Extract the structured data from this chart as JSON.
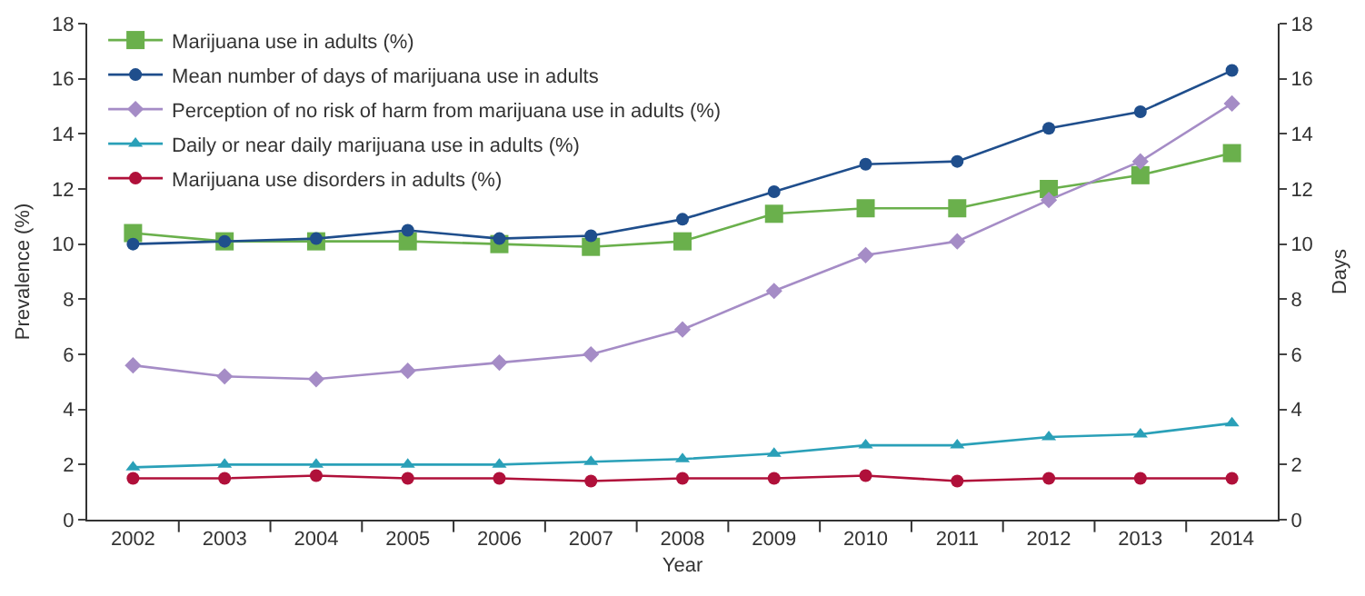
{
  "chart_data": {
    "type": "line",
    "xlabel": "Year",
    "ylabel": "Prevalence (%)",
    "y2label": "Days",
    "categories": [
      "2002",
      "2003",
      "2004",
      "2005",
      "2006",
      "2007",
      "2008",
      "2009",
      "2010",
      "2011",
      "2012",
      "2013",
      "2014"
    ],
    "series": [
      {
        "name": "Marijuana use in adults (%)",
        "color": "#6ab04c",
        "marker": "square",
        "values": [
          10.4,
          10.1,
          10.1,
          10.1,
          10.0,
          9.9,
          10.1,
          11.1,
          11.3,
          11.3,
          12.0,
          12.5,
          13.3
        ]
      },
      {
        "name": "Mean number of days of marijuana use in adults",
        "color": "#1f4e8c",
        "marker": "circle",
        "axis": "y2",
        "values": [
          10.0,
          10.1,
          10.2,
          10.5,
          10.2,
          10.3,
          10.9,
          11.9,
          12.9,
          13.0,
          14.2,
          14.8,
          16.3
        ]
      },
      {
        "name": "Perception of no risk of harm from marijuana use in adults (%)",
        "color": "#a58cc6",
        "marker": "diamond",
        "values": [
          5.6,
          5.2,
          5.1,
          5.4,
          5.7,
          6.0,
          6.9,
          8.3,
          9.6,
          10.1,
          11.6,
          13.0,
          15.1
        ]
      },
      {
        "name": "Daily or near daily marijuana use in adults (%)",
        "color": "#2aa0b8",
        "marker": "triangle",
        "values": [
          1.9,
          2.0,
          2.0,
          2.0,
          2.0,
          2.1,
          2.2,
          2.4,
          2.7,
          2.7,
          3.0,
          3.1,
          3.5
        ]
      },
      {
        "name": "Marijuana use disorders in adults (%)",
        "color": "#b0103a",
        "marker": "circle",
        "values": [
          1.5,
          1.5,
          1.6,
          1.5,
          1.5,
          1.4,
          1.5,
          1.5,
          1.6,
          1.4,
          1.5,
          1.5,
          1.5
        ]
      }
    ],
    "ylim": [
      0,
      18
    ],
    "yticks": [
      0,
      2,
      4,
      6,
      8,
      10,
      12,
      14,
      16,
      18
    ],
    "y2lim": [
      0,
      18
    ],
    "y2ticks": [
      0,
      2,
      4,
      6,
      8,
      10,
      12,
      14,
      16,
      18
    ],
    "grid": false,
    "legend": "top left",
    "line_style": "solid"
  }
}
